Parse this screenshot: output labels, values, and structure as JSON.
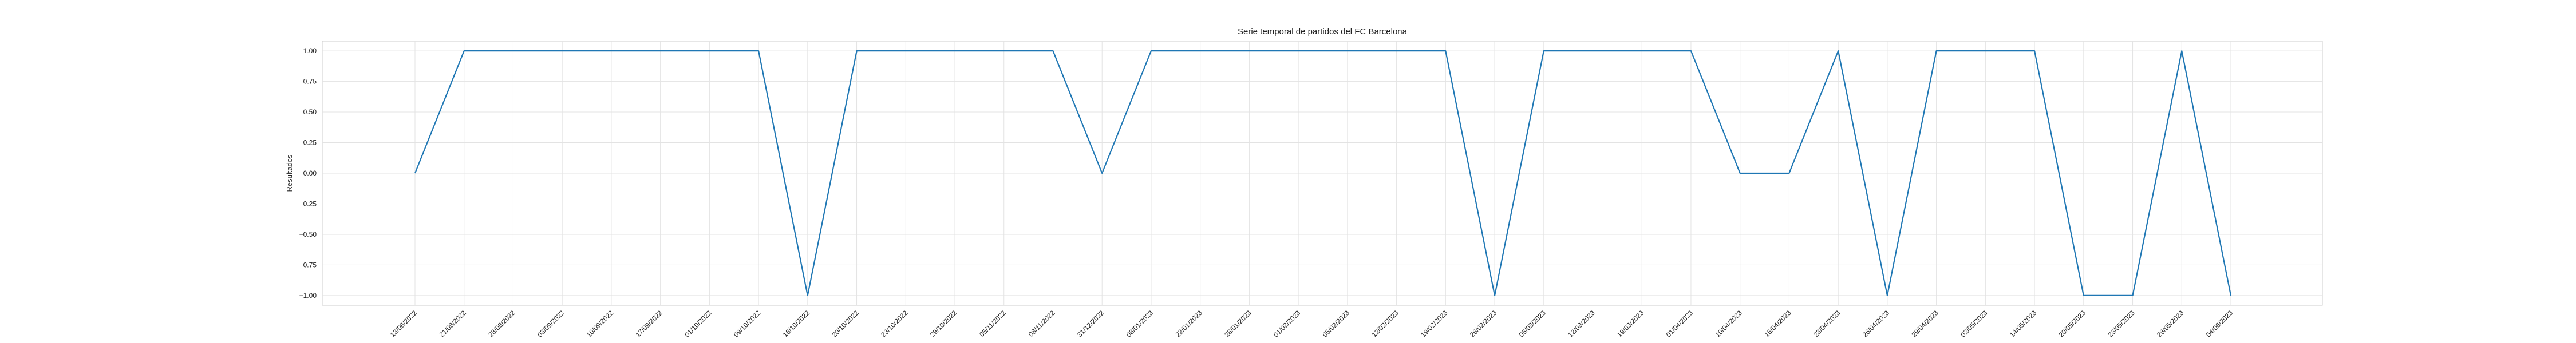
{
  "chart_data": {
    "type": "line",
    "title": "Serie temporal de partidos del FC Barcelona",
    "xlabel": "",
    "ylabel": "Resultados",
    "ylim": [
      -1.08,
      1.08
    ],
    "yticks": [
      1.0,
      0.75,
      0.5,
      0.25,
      0.0,
      -0.25,
      -0.5,
      -0.75,
      -1.0
    ],
    "ytick_labels": [
      "1.00",
      "0.75",
      "0.50",
      "0.25",
      "0.00",
      "−0.25",
      "−0.50",
      "−0.75",
      "−1.00"
    ],
    "grid": true,
    "line_color": "#1f77b4",
    "x_tick_labels": [
      "13/08/2022",
      "21/08/2022",
      "28/08/2022",
      "03/09/2022",
      "10/09/2022",
      "17/09/2022",
      "01/10/2022",
      "09/10/2022",
      "16/10/2022",
      "20/10/2022",
      "23/10/2022",
      "29/10/2022",
      "05/11/2022",
      "08/11/2022",
      "31/12/2022",
      "08/01/2023",
      "22/01/2023",
      "28/01/2023",
      "01/02/2023",
      "05/02/2023",
      "12/02/2023",
      "19/02/2023",
      "26/02/2023",
      "05/03/2023",
      "12/03/2023",
      "19/03/2023",
      "01/04/2023",
      "10/04/2023",
      "16/04/2023",
      "23/04/2023",
      "26/04/2023",
      "29/04/2023",
      "02/05/2023",
      "14/05/2023",
      "20/05/2023",
      "23/05/2023",
      "28/05/2023",
      "04/06/2023"
    ],
    "x": [
      "13/08/2022",
      "21/08/2022",
      "28/08/2022",
      "03/09/2022",
      "10/09/2022",
      "17/09/2022",
      "01/10/2022",
      "09/10/2022",
      "16/10/2022",
      "20/10/2022",
      "23/10/2022",
      "29/10/2022",
      "05/11/2022",
      "08/11/2022",
      "31/12/2022",
      "08/01/2023",
      "22/01/2023",
      "28/01/2023",
      "01/02/2023",
      "05/02/2023",
      "12/02/2023",
      "19/02/2023",
      "26/02/2023",
      "05/03/2023",
      "12/03/2023",
      "19/03/2023",
      "01/04/2023",
      "10/04/2023",
      "16/04/2023",
      "23/04/2023",
      "26/04/2023",
      "29/04/2023",
      "02/05/2023",
      "14/05/2023",
      "20/05/2023",
      "23/05/2023",
      "28/05/2023",
      "04/06/2023"
    ],
    "values": [
      0,
      1,
      1,
      1,
      1,
      1,
      1,
      1,
      -1,
      1,
      1,
      1,
      1,
      1,
      0,
      1,
      1,
      1,
      1,
      1,
      1,
      1,
      -1,
      1,
      1,
      1,
      1,
      0,
      0,
      1,
      -1,
      1,
      1,
      1,
      -1,
      -1,
      1,
      -1
    ]
  }
}
